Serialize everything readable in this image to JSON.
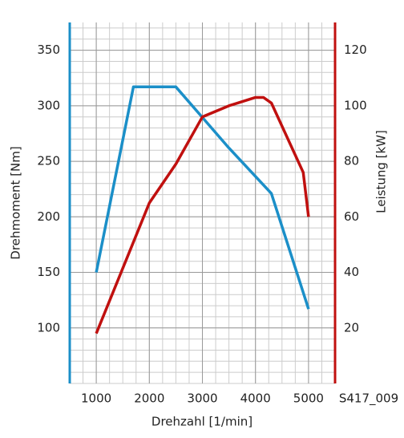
{
  "chart_data": {
    "type": "line",
    "x_label": "Drehzahl [1/min]",
    "y_label": "Drehmoment [Nm]",
    "y2_label": "Leistung [kW]",
    "figure_id": "S417_009",
    "xlim": [
      500,
      5500
    ],
    "xticks": [
      1000,
      2000,
      3000,
      4000,
      5000
    ],
    "ylim": [
      50,
      375
    ],
    "yticks": [
      100,
      150,
      200,
      250,
      300,
      350
    ],
    "y2lim": [
      0,
      130
    ],
    "y2ticks": [
      20,
      40,
      60,
      80,
      100,
      120
    ],
    "grid": true,
    "series": [
      {
        "name": "Drehmoment",
        "color": "#1b8fc8",
        "x": [
          1000,
          1700,
          2500,
          3500,
          4300,
          5000
        ],
        "values": [
          150,
          317,
          317,
          262,
          221,
          117
        ]
      },
      {
        "name": "Leistung",
        "color": "#c0100f",
        "axis": "y2",
        "x": [
          1000,
          2000,
          2500,
          3000,
          3500,
          4000,
          4150,
          4300,
          4900,
          5000
        ],
        "values": [
          18,
          65,
          79,
          96,
          100,
          103,
          103,
          101,
          76,
          60
        ]
      }
    ]
  }
}
